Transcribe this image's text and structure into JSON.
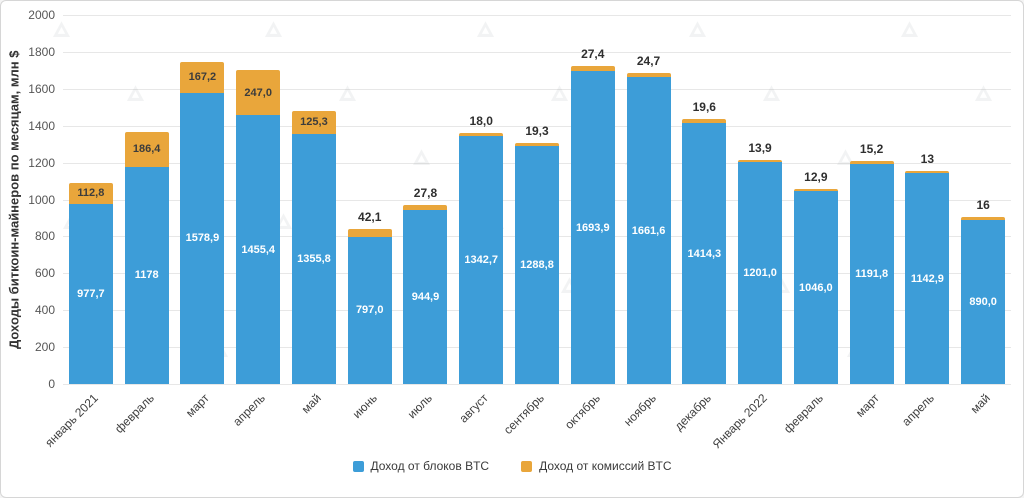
{
  "chart_data": {
    "type": "bar",
    "stacked": true,
    "ylabel": "Доходы биткоин-майнеров по месяцам, млн $",
    "xlabel": "",
    "ylim": [
      0,
      2000
    ],
    "yticks": [
      "0",
      "200",
      "400",
      "600",
      "800",
      "1000",
      "1200",
      "1400",
      "1600",
      "1800",
      "2000"
    ],
    "grid": true,
    "legend_position": "bottom-center",
    "categories": [
      "январь 2021",
      "февраль",
      "март",
      "апрель",
      "май",
      "июнь",
      "июль",
      "август",
      "сентябрь",
      "октябрь",
      "ноябрь",
      "декабрь",
      "Январь 2022",
      "февраль",
      "март",
      "апрель",
      "май"
    ],
    "series": [
      {
        "name": "Доход от блоков BTC",
        "color": "#3D9DD8",
        "values": [
          977.7,
          1178,
          1578.9,
          1455.4,
          1355.8,
          797.0,
          944.9,
          1342.7,
          1288.8,
          1693.9,
          1661.6,
          1414.3,
          1201.0,
          1046.0,
          1191.8,
          1142.9,
          890.0
        ],
        "labels": [
          "977,7",
          "1178",
          "1578,9",
          "1455,4",
          "1355,8",
          "797,0",
          "944,9",
          "1342,7",
          "1288,8",
          "1693,9",
          "1661,6",
          "1414,3",
          "1201,0",
          "1046,0",
          "1191,8",
          "1142,9",
          "890,0"
        ]
      },
      {
        "name": "Доход от комиссий BTC",
        "color": "#E9A63B",
        "values": [
          112.8,
          186.4,
          167.2,
          247.0,
          125.3,
          42.1,
          27.8,
          18.0,
          19.3,
          27.4,
          24.7,
          19.6,
          13.9,
          12.9,
          15.2,
          13,
          16
        ],
        "labels": [
          "112,8",
          "186,4",
          "167,2",
          "247,0",
          "125,3",
          "42,1",
          "27,8",
          "18,0",
          "19,3",
          "27,4",
          "24,7",
          "19,6",
          "13,9",
          "12,9",
          "15,2",
          "13",
          "16"
        ]
      }
    ],
    "fee_label_inside_threshold": 100
  },
  "icons": {
    "watermark": "forklog-logo-triangle-icon"
  }
}
